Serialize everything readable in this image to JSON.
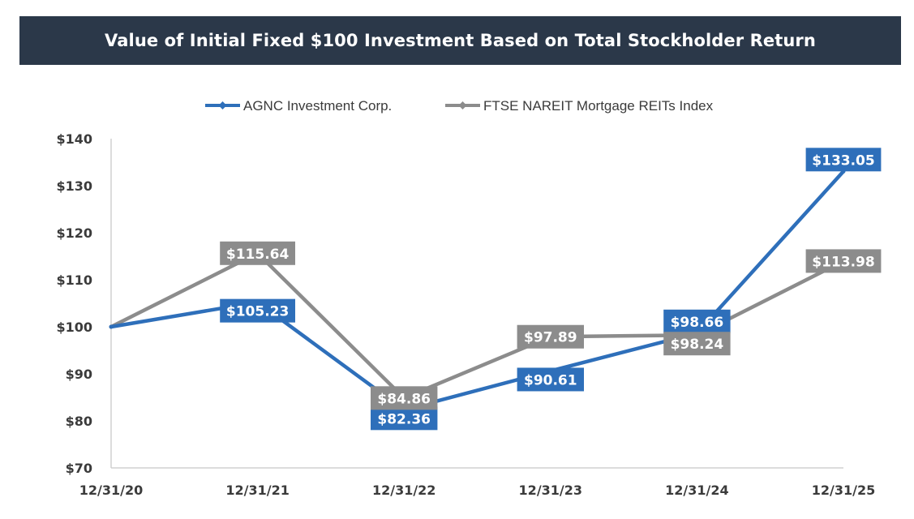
{
  "title": "Value of Initial Fixed $100 Investment Based on Total Stockholder Return",
  "colors": {
    "header_bg": "#2b3849",
    "agnc": "#2e6fba",
    "ftse": "#8c8c8c",
    "axis": "#d0d0d0",
    "text": "#3b3b3b"
  },
  "chart_data": {
    "type": "line",
    "title": "Value of Initial Fixed $100 Investment Based on Total Stockholder Return",
    "categories": [
      "12/31/20",
      "12/31/21",
      "12/31/22",
      "12/31/23",
      "12/31/24",
      "12/31/25"
    ],
    "ylim": [
      70,
      140
    ],
    "yticks": [
      70,
      80,
      90,
      100,
      110,
      120,
      130,
      140
    ],
    "ytick_labels": [
      "$70",
      "$80",
      "$90",
      "$100",
      "$110",
      "$120",
      "$130",
      "$140"
    ],
    "legend_position": "top-center",
    "grid": false,
    "series": [
      {
        "name": "AGNC Investment Corp.",
        "color": "#2e6fba",
        "values": [
          100,
          105.23,
          82.36,
          90.61,
          98.66,
          133.05
        ],
        "labels": [
          null,
          "$105.23",
          "$82.36",
          "$90.61",
          "$98.66",
          "$133.05"
        ],
        "label_side": [
          null,
          "below",
          "below",
          "below",
          "above",
          "above"
        ]
      },
      {
        "name": "FTSE NAREIT Mortgage REITs Index",
        "color": "#8c8c8c",
        "values": [
          100,
          115.64,
          84.86,
          97.89,
          98.24,
          113.98
        ],
        "labels": [
          null,
          "$115.64",
          "$84.86",
          "$97.89",
          "$98.24",
          "$113.98"
        ],
        "label_side": [
          null,
          "center",
          "center",
          "center",
          "below",
          "center"
        ]
      }
    ]
  }
}
